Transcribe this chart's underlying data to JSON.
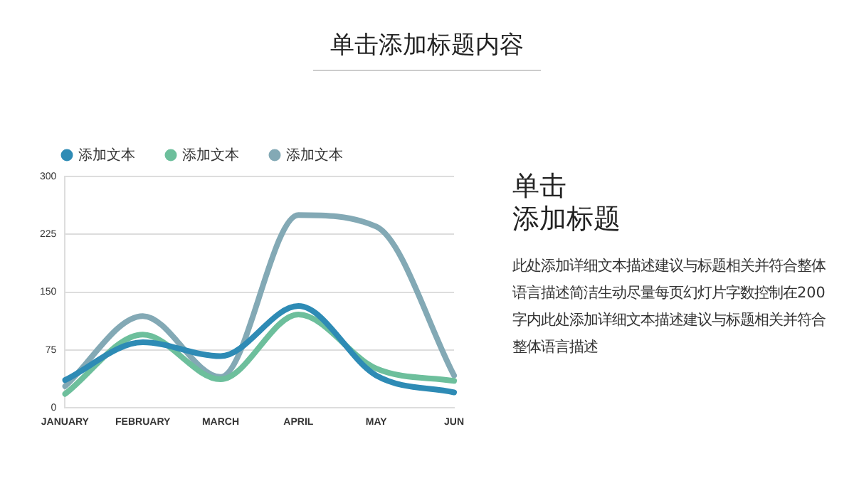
{
  "chart_data": {
    "type": "line",
    "title": "单击添加标题内容",
    "categories": [
      "JANUARY",
      "FEBRUARY",
      "MARCH",
      "APRIL",
      "MAY",
      "JUN"
    ],
    "series": [
      {
        "name": "添加文本",
        "color": "#2e8bb5",
        "values": [
          36,
          85,
          67,
          132,
          42,
          20
        ]
      },
      {
        "name": "添加文本",
        "color": "#6dbf9c",
        "values": [
          18,
          95,
          37,
          121,
          51,
          35
        ]
      },
      {
        "name": "添加文本",
        "color": "#83a9b5",
        "values": [
          28,
          119,
          40,
          250,
          235,
          42
        ]
      }
    ],
    "ylim": [
      0,
      300
    ],
    "yticks": [
      0,
      75,
      150,
      225,
      300
    ],
    "grid": "y",
    "legend": "top left",
    "marker": "none",
    "line_style": "solid",
    "annotations": [
      "单击",
      "添加标题",
      "此处添加详细文本描述建议与标题相关并符合整体语言描述简洁生动尽量每页幻灯片字数控制在200字内此处添加详细文本描述建议与标题相关并符合整体语言描述"
    ]
  }
}
